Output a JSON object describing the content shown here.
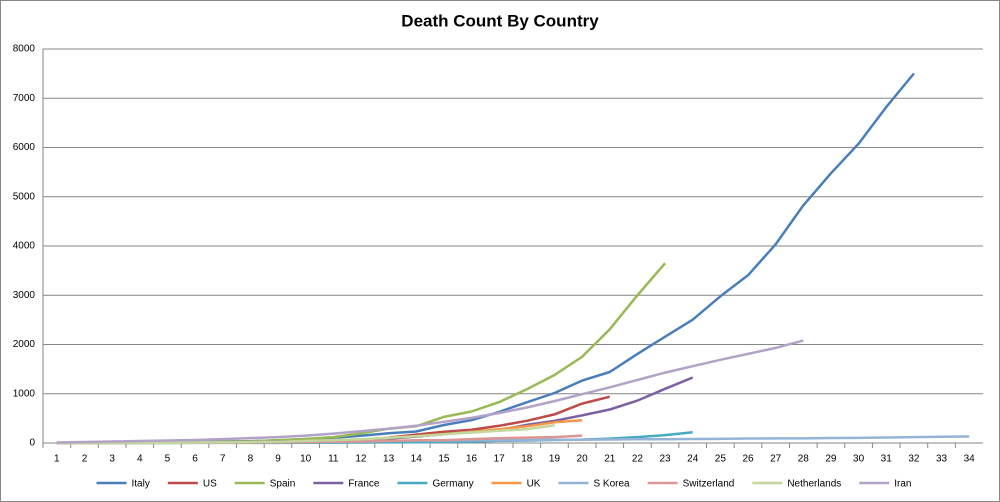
{
  "chart_data": {
    "type": "line",
    "title": "Death Count By Country",
    "categories": [
      "1",
      "2",
      "3",
      "4",
      "5",
      "6",
      "7",
      "8",
      "9",
      "10",
      "11",
      "12",
      "13",
      "14",
      "15",
      "16",
      "17",
      "18",
      "19",
      "20",
      "21",
      "22",
      "23",
      "24",
      "25",
      "26",
      "27",
      "28",
      "29",
      "30",
      "31",
      "32",
      "33",
      "34"
    ],
    "ylim": [
      0,
      8000
    ],
    "yticks": [
      0,
      1000,
      2000,
      3000,
      4000,
      5000,
      6000,
      7000,
      8000
    ],
    "grid": true,
    "legend": "bottom",
    "series": [
      {
        "name": "Italy",
        "color": "#4a7ebb",
        "values": [
          3,
          7,
          10,
          12,
          17,
          21,
          29,
          34,
          52,
          79,
          107,
          148,
          197,
          233,
          366,
          463,
          631,
          827,
          1016,
          1266,
          1441,
          1809,
          2158,
          2503,
          2978,
          3405,
          4032,
          4825,
          5476,
          6077,
          6820,
          7503,
          null,
          null
        ]
      },
      {
        "name": "US",
        "color": "#be4b48",
        "values": [
          1,
          2,
          6,
          9,
          11,
          12,
          15,
          19,
          22,
          30,
          38,
          48,
          110,
          170,
          230,
          270,
          350,
          450,
          580,
          800,
          940,
          null,
          null,
          null,
          null,
          null,
          null,
          null,
          null,
          null,
          null,
          null,
          null,
          null
        ]
      },
      {
        "name": "Spain",
        "color": "#98b954",
        "values": [
          1,
          2,
          3,
          5,
          10,
          17,
          28,
          35,
          54,
          84,
          120,
          195,
          290,
          340,
          530,
          640,
          830,
          1090,
          1380,
          1750,
          2310,
          3000,
          3650,
          null,
          null,
          null,
          null,
          null,
          null,
          null,
          null,
          null,
          null,
          null
        ]
      },
      {
        "name": "France",
        "color": "#7d60a0",
        "values": [
          2,
          3,
          4,
          7,
          9,
          11,
          19,
          25,
          30,
          40,
          50,
          60,
          90,
          130,
          180,
          240,
          260,
          370,
          450,
          560,
          680,
          860,
          1100,
          1330,
          null,
          null,
          null,
          null,
          null,
          null,
          null,
          null,
          null,
          null
        ]
      },
      {
        "name": "Germany",
        "color": "#46aac5",
        "values": [
          0,
          0,
          0,
          0,
          1,
          2,
          2,
          3,
          3,
          6,
          9,
          11,
          13,
          17,
          24,
          28,
          44,
          50,
          60,
          70,
          90,
          120,
          160,
          220,
          null,
          null,
          null,
          null,
          null,
          null,
          null,
          null,
          null,
          null
        ]
      },
      {
        "name": "UK",
        "color": "#f79646",
        "values": [
          1,
          2,
          2,
          3,
          5,
          6,
          8,
          10,
          21,
          35,
          55,
          71,
          104,
          140,
          180,
          230,
          280,
          340,
          420,
          460,
          null,
          null,
          null,
          null,
          null,
          null,
          null,
          null,
          null,
          null,
          null,
          null,
          null,
          null
        ]
      },
      {
        "name": "S Korea",
        "color": "#95b3d7",
        "values": [
          1,
          2,
          4,
          7,
          10,
          13,
          16,
          17,
          22,
          28,
          32,
          35,
          42,
          44,
          50,
          53,
          54,
          60,
          66,
          67,
          72,
          75,
          75,
          81,
          84,
          91,
          94,
          94,
          102,
          104,
          111,
          120,
          126,
          131
        ]
      },
      {
        "name": "Switzerland",
        "color": "#d99694",
        "values": [
          1,
          1,
          2,
          3,
          4,
          6,
          7,
          11,
          13,
          14,
          27,
          28,
          41,
          54,
          56,
          80,
          98,
          110,
          120,
          150,
          null,
          null,
          null,
          null,
          null,
          null,
          null,
          null,
          null,
          null,
          null,
          null,
          null,
          null
        ]
      },
      {
        "name": "Netherlands",
        "color": "#c3d69b",
        "values": [
          1,
          1,
          3,
          4,
          5,
          10,
          12,
          20,
          24,
          43,
          58,
          76,
          106,
          136,
          179,
          213,
          250,
          280,
          360,
          null,
          null,
          null,
          null,
          null,
          null,
          null,
          null,
          null,
          null,
          null,
          null,
          null,
          null,
          null
        ]
      },
      {
        "name": "Iran",
        "color": "#b3a2c7",
        "values": [
          10,
          20,
          30,
          40,
          50,
          60,
          80,
          100,
          120,
          150,
          190,
          240,
          290,
          350,
          430,
          510,
          610,
          720,
          850,
          990,
          1130,
          1280,
          1430,
          1560,
          1690,
          1810,
          1930,
          2080,
          null,
          null,
          null,
          null,
          null,
          null
        ]
      }
    ]
  }
}
